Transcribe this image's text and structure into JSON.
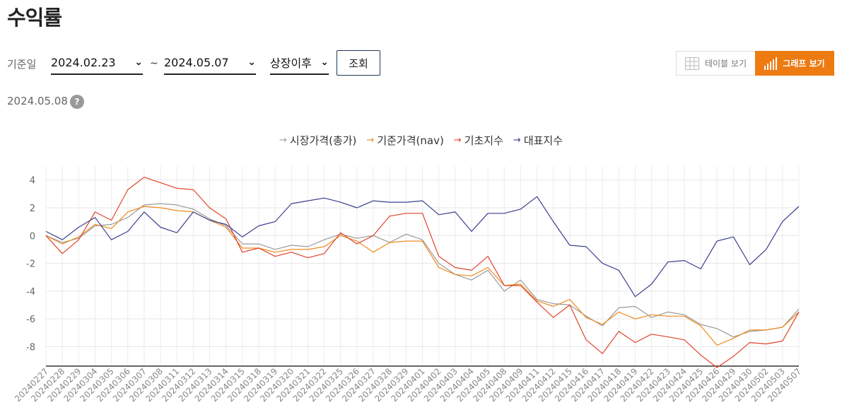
{
  "page": {
    "title": "수익률",
    "date_label": "기준일",
    "date_from": "2024.02.23",
    "date_to": "2024.05.07",
    "tilde": "~",
    "period_select": "상장이후",
    "search_button": "조회",
    "table_view_button": "테이블 보기",
    "graph_view_button": "그래프 보기",
    "as_of_date": "2024.05.08",
    "help_icon_text": "?"
  },
  "chart_data": {
    "type": "line",
    "x": [
      "20240227",
      "20240228",
      "20240229",
      "20240304",
      "20240305",
      "20240306",
      "20240307",
      "20240308",
      "20240311",
      "20240312",
      "20240313",
      "20240314",
      "20240315",
      "20240318",
      "20240319",
      "20240320",
      "20240321",
      "20240322",
      "20240325",
      "20240326",
      "20240327",
      "20240328",
      "20240329",
      "20240401",
      "20240402",
      "20240403",
      "20240404",
      "20240405",
      "20240408",
      "20240409",
      "20240411",
      "20240412",
      "20240415",
      "20240416",
      "20240417",
      "20240418",
      "20240419",
      "20240422",
      "20240423",
      "20240424",
      "20240425",
      "20240426",
      "20240429",
      "20240430",
      "20240502",
      "20240503",
      "20240507"
    ],
    "ylim": [
      -9.4,
      5
    ],
    "yticks": [
      4,
      2,
      0,
      -2,
      -4,
      -6,
      -8
    ],
    "grid": true,
    "legend_position": "top-center",
    "series": [
      {
        "name": "시장가격(총가)",
        "color": "#9a9a9a",
        "values": [
          0.0,
          -0.5,
          -0.2,
          0.7,
          0.8,
          1.3,
          2.2,
          2.3,
          2.2,
          1.9,
          1.2,
          0.7,
          -0.6,
          -0.6,
          -1.0,
          -0.7,
          -0.8,
          -0.3,
          0.1,
          -0.2,
          0.0,
          -0.5,
          0.1,
          -0.3,
          -2.0,
          -2.8,
          -3.2,
          -2.5,
          -4.0,
          -3.2,
          -4.6,
          -4.9,
          -5.0,
          -5.8,
          -6.5,
          -5.2,
          -5.1,
          -5.9,
          -5.5,
          -5.7,
          -6.4,
          -6.7,
          -7.3,
          -6.9,
          -6.8,
          -6.6,
          -5.3
        ]
      },
      {
        "name": "기준가격(nav)",
        "color": "#ee8a1e",
        "values": [
          0.0,
          -0.6,
          -0.1,
          0.8,
          0.5,
          1.7,
          2.1,
          2.0,
          1.8,
          1.7,
          1.1,
          0.6,
          -0.9,
          -0.9,
          -1.2,
          -1.0,
          -1.0,
          -0.8,
          0.0,
          -0.4,
          -1.2,
          -0.5,
          -0.4,
          -0.4,
          -2.3,
          -2.8,
          -2.9,
          -2.3,
          -3.6,
          -3.5,
          -4.7,
          -5.1,
          -4.6,
          -5.9,
          -6.4,
          -5.5,
          -6.0,
          -5.7,
          -5.8,
          -5.8,
          -6.5,
          -7.9,
          -7.4,
          -6.8,
          -6.8,
          -6.6,
          -5.5
        ]
      },
      {
        "name": "기초지수",
        "color": "#e0442a",
        "values": [
          0.0,
          -1.3,
          -0.3,
          1.7,
          1.1,
          3.3,
          4.2,
          3.8,
          3.4,
          3.3,
          2.0,
          1.2,
          -1.2,
          -0.9,
          -1.5,
          -1.2,
          -1.6,
          -1.3,
          0.2,
          -0.6,
          0.0,
          1.4,
          1.6,
          1.6,
          -1.5,
          -2.3,
          -2.5,
          -1.5,
          -3.6,
          -3.6,
          -4.8,
          -5.9,
          -5.0,
          -7.5,
          -8.5,
          -6.9,
          -7.7,
          -7.1,
          -7.3,
          -7.5,
          -8.6,
          -9.5,
          -8.7,
          -7.7,
          -7.8,
          -7.6,
          -5.5
        ]
      },
      {
        "name": "대표지수",
        "color": "#3a3f8f",
        "values": [
          0.3,
          -0.3,
          0.6,
          1.3,
          -0.3,
          0.3,
          1.7,
          0.6,
          0.2,
          1.7,
          1.1,
          0.8,
          -0.1,
          0.7,
          1.0,
          2.3,
          2.5,
          2.7,
          2.4,
          2.0,
          2.5,
          2.4,
          2.4,
          2.5,
          1.5,
          1.7,
          0.3,
          1.6,
          1.6,
          1.9,
          2.8,
          1.0,
          -0.7,
          -0.8,
          -2.0,
          -2.5,
          -4.4,
          -3.5,
          -1.9,
          -1.8,
          -2.4,
          -0.4,
          -0.1,
          -2.1,
          -1.0,
          1.0,
          2.1
        ]
      }
    ]
  }
}
